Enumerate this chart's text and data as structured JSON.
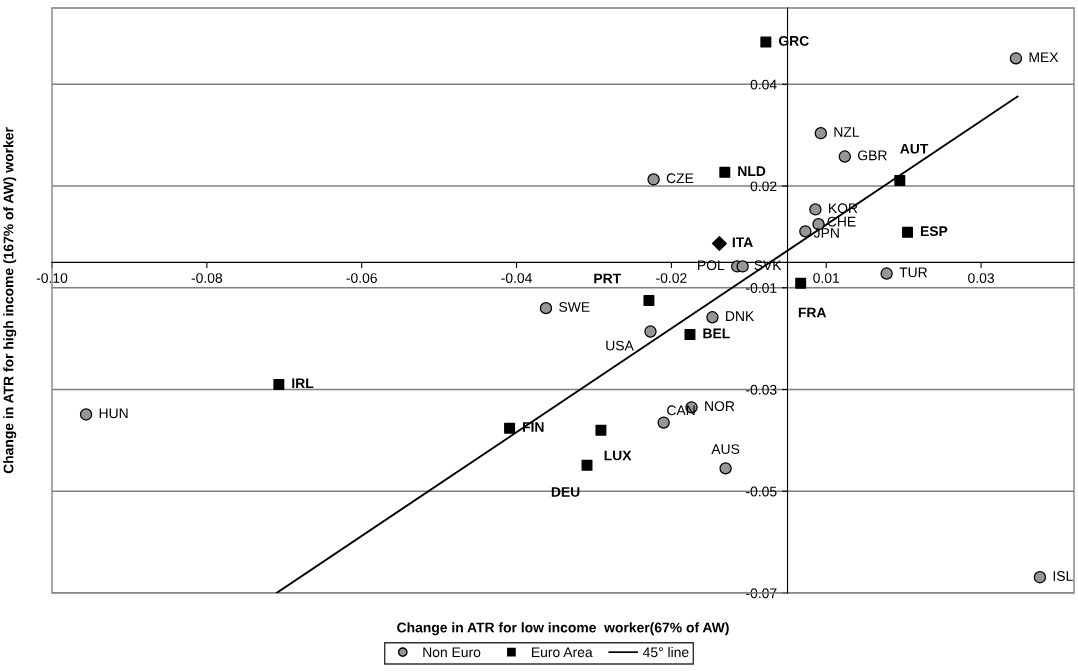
{
  "chart_data": {
    "type": "scatter",
    "xlabel": "Change in ATR for low income  worker(67% of AW)",
    "ylabel": "Change in ATR for high income (167% of AW) worker",
    "xlim": [
      -0.095,
      0.037
    ],
    "ylim": [
      -0.065,
      0.05
    ],
    "xticks": [
      {
        "value": -0.095,
        "label": "-0.10"
      },
      {
        "value": -0.075,
        "label": "-0.08"
      },
      {
        "value": -0.055,
        "label": "-0.06"
      },
      {
        "value": -0.035,
        "label": "-0.04"
      },
      {
        "value": -0.015,
        "label": "-0.02"
      },
      {
        "value": 0.005,
        "label": "0.01"
      },
      {
        "value": 0.025,
        "label": "0.03"
      }
    ],
    "yticks": [
      {
        "value": -0.065,
        "label": "-0.07"
      },
      {
        "value": -0.045,
        "label": "-0.05"
      },
      {
        "value": -0.025,
        "label": "-0.03"
      },
      {
        "value": -0.005,
        "label": "-0.01"
      },
      {
        "value": 0.015,
        "label": "0.02"
      },
      {
        "value": 0.035,
        "label": "0.04"
      }
    ],
    "grid": "y",
    "legend": "bottom",
    "series": [
      {
        "name": "Non Euro",
        "marker": "circle",
        "color": "#969696",
        "x": [
          0.0295,
          0.0043,
          0.0074,
          -0.0173,
          0.0036,
          0.004,
          0.0023,
          -0.0065,
          -0.0058,
          0.0128,
          -0.0312,
          -0.0097,
          -0.0177,
          -0.0906,
          -0.0124,
          -0.016,
          -0.008,
          0.0326
        ],
        "values": [
          0.0401,
          0.0254,
          0.0208,
          0.0163,
          0.0104,
          0.0075,
          0.0061,
          -0.0008,
          -0.0008,
          -0.0022,
          -0.009,
          -0.0108,
          -0.0136,
          -0.0299,
          -0.0285,
          -0.0315,
          -0.0405,
          -0.0619
        ],
        "value_labels": [
          "MEX",
          "NZL",
          "GBR",
          "CZE",
          "KOR",
          "CHE",
          "JPN",
          "POL",
          "SVK",
          "TUR",
          "SWE",
          "DNK",
          "USA",
          "HUN",
          "NOR",
          "CAN",
          "AUS",
          "ISL"
        ]
      },
      {
        "name": "Euro Area",
        "marker": "square",
        "color": "#000000",
        "x": [
          -0.0028,
          -0.0081,
          0.0145,
          0.0155,
          0.0017,
          -0.0179,
          -0.0126,
          -0.0657,
          -0.0359,
          -0.0241,
          -0.0259
        ],
        "values": [
          0.0433,
          0.0177,
          0.0161,
          0.0059,
          -0.0041,
          -0.0075,
          -0.0142,
          -0.024,
          -0.0326,
          -0.033,
          -0.0399
        ],
        "value_labels": [
          "GRC",
          "NLD",
          "AUT",
          "ESP",
          "FRA",
          "PRT",
          "BEL",
          "IRL",
          "FIN",
          "LUX",
          "DEU"
        ]
      },
      {
        "marker": "diamond",
        "color": "#000000",
        "x": [
          -0.0088
        ],
        "values": [
          0.0037
        ],
        "value_labels": [
          "ITA"
        ]
      },
      {
        "name": "45° line",
        "type": "line",
        "marker": "none",
        "line_style": "solid",
        "color": "#000000",
        "x": [
          -0.066,
          0.0297
        ],
        "values": [
          -0.065,
          0.0326
        ]
      }
    ]
  }
}
